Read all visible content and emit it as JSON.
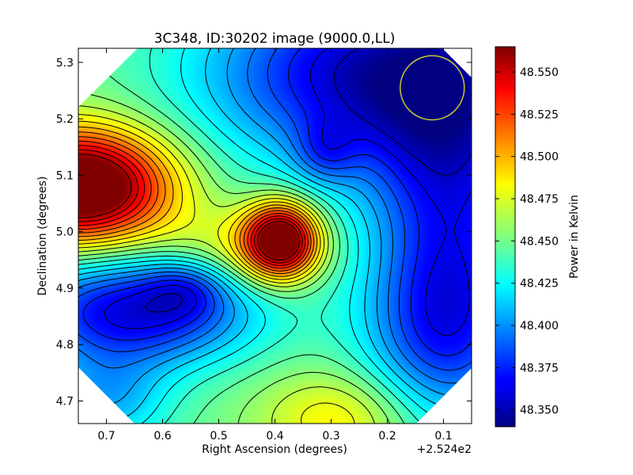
{
  "chart_data": {
    "type": "heatmap",
    "title": "3C348, ID:30202 image (9000.0,LL)",
    "xlabel": "Right Ascension (degrees)",
    "ylabel": "Declination (degrees)",
    "x_offset_label": "+2.524e2",
    "x_ticks": [
      "0.7",
      "0.6",
      "0.5",
      "0.4",
      "0.3",
      "0.2",
      "0.1"
    ],
    "x_tick_values": [
      0.7,
      0.6,
      0.5,
      0.4,
      0.3,
      0.2,
      0.1
    ],
    "y_ticks": [
      "4.7",
      "4.8",
      "4.9",
      "5.0",
      "5.1",
      "5.2",
      "5.3"
    ],
    "y_tick_values": [
      4.7,
      4.8,
      4.9,
      5.0,
      5.1,
      5.2,
      5.3
    ],
    "xlim": [
      0.75,
      0.05
    ],
    "ylim": [
      4.66,
      5.325
    ],
    "colorbar": {
      "label": "Power in Kelvin",
      "ticks": [
        "48.350",
        "48.375",
        "48.400",
        "48.425",
        "48.450",
        "48.475",
        "48.500",
        "48.525",
        "48.550"
      ],
      "tick_values": [
        48.35,
        48.375,
        48.4,
        48.425,
        48.45,
        48.475,
        48.5,
        48.525,
        48.55
      ],
      "range": [
        48.34,
        48.565
      ],
      "colormap": "jet"
    },
    "field": {
      "base": 48.45,
      "components": [
        {
          "feature": "hot blob (west)",
          "ra": 0.745,
          "dec": 5.08,
          "amp": 0.15,
          "sra": 0.11,
          "sdec": 0.07
        },
        {
          "feature": "hot peak",
          "ra": 0.39,
          "dec": 4.985,
          "amp": 0.13,
          "sra": 0.045,
          "sdec": 0.045
        },
        {
          "feature": "warm ridge",
          "ra": 0.46,
          "dec": 4.97,
          "amp": 0.03,
          "sra": 0.1,
          "sdec": 0.05
        },
        {
          "feature": "warm south",
          "ra": 0.28,
          "dec": 4.67,
          "amp": 0.035,
          "sra": 0.1,
          "sdec": 0.06
        },
        {
          "feature": "cold north",
          "ra": 0.25,
          "dec": 5.28,
          "amp": -0.09,
          "sra": 0.2,
          "sdec": 0.12
        },
        {
          "feature": "cold core",
          "ra": 0.31,
          "dec": 5.14,
          "amp": -0.03,
          "sra": 0.04,
          "sdec": 0.04
        },
        {
          "feature": "cold east",
          "ra": 0.08,
          "dec": 5.1,
          "amp": -0.07,
          "sra": 0.11,
          "sdec": 0.2
        },
        {
          "feature": "cold southwest",
          "ra": 0.65,
          "dec": 4.86,
          "amp": -0.09,
          "sra": 0.15,
          "sdec": 0.07
        },
        {
          "feature": "cold minimum",
          "ra": 0.56,
          "dec": 4.9,
          "amp": -0.03,
          "sra": 0.05,
          "sdec": 0.035
        },
        {
          "feature": "cold southeast",
          "ra": 0.1,
          "dec": 4.82,
          "amp": -0.06,
          "sra": 0.1,
          "sdec": 0.12
        },
        {
          "feature": "cool southwest corner",
          "ra": 0.7,
          "dec": 4.7,
          "amp": -0.04,
          "sra": 0.08,
          "sdec": 0.06
        }
      ],
      "contour_levels": [
        48.355,
        48.365,
        48.375,
        48.385,
        48.395,
        48.405,
        48.415,
        48.425,
        48.435,
        48.445,
        48.455,
        48.465,
        48.475,
        48.485,
        48.495,
        48.505,
        48.515,
        48.525,
        48.535,
        48.545,
        48.555
      ]
    },
    "beam_circle": {
      "ra": 0.12,
      "dec": 5.255,
      "radius_deg": 0.057,
      "color": "#c8c832"
    },
    "contour_color": "#000000",
    "grid": false
  }
}
